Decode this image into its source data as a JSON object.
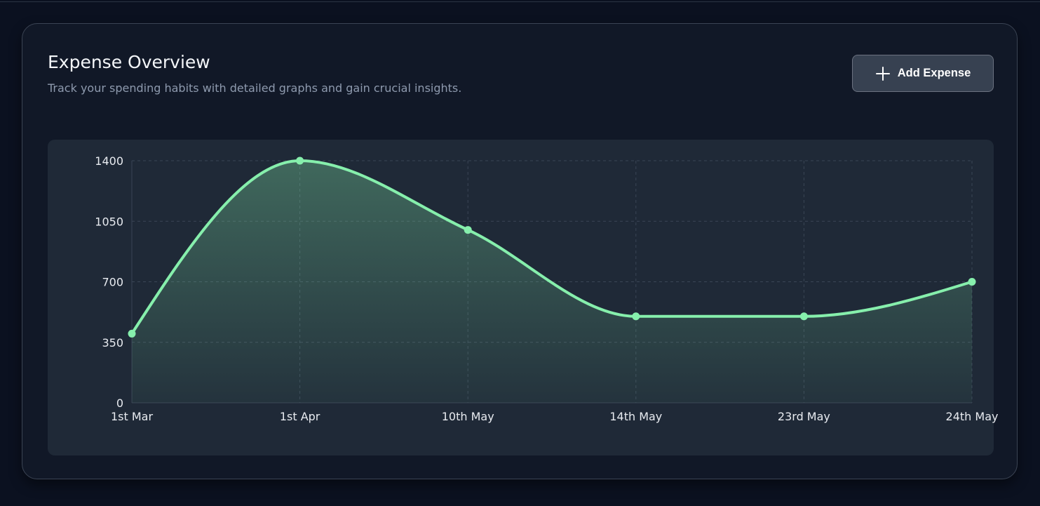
{
  "header": {
    "title": "Expense Overview",
    "subtitle": "Track your spending habits with detailed graphs and gain crucial insights.",
    "add_button_label": "Add Expense",
    "add_button_icon": "plus-icon"
  },
  "colors": {
    "page_background": "#0b1120",
    "card_background": "#111827",
    "chart_background": "#1f2937",
    "line": "#86efac",
    "button_background": "#374151"
  },
  "chart_data": {
    "type": "area",
    "categories": [
      "1st Mar",
      "1st Apr",
      "10th May",
      "14th May",
      "23rd May",
      "24th May"
    ],
    "series": [
      {
        "values": [
          400,
          1400,
          1000,
          500,
          500,
          700
        ]
      }
    ],
    "yticks": [
      0,
      350,
      700,
      1050,
      1400
    ],
    "ylim": [
      0,
      1400
    ],
    "grid": true,
    "grid_style": "dashed",
    "curve": "smooth",
    "markers": true,
    "legend": false
  }
}
